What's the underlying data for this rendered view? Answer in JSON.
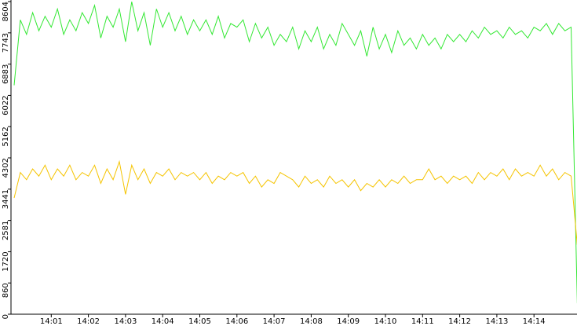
{
  "chart_data": {
    "type": "line",
    "categories": [
      null,
      null,
      null,
      null,
      null,
      null,
      "14:01",
      null,
      null,
      null,
      null,
      null,
      "14:02",
      null,
      null,
      null,
      null,
      null,
      "14:03",
      null,
      null,
      null,
      null,
      null,
      "14:04",
      null,
      null,
      null,
      null,
      null,
      "14:05",
      null,
      null,
      null,
      null,
      null,
      "14:06",
      null,
      null,
      null,
      null,
      null,
      "14:07",
      null,
      null,
      null,
      null,
      null,
      "14:08",
      null,
      null,
      null,
      null,
      null,
      "14:09",
      null,
      null,
      null,
      null,
      null,
      "14:10",
      null,
      null,
      null,
      null,
      null,
      "14:11",
      null,
      null,
      null,
      null,
      null,
      "14:12",
      null,
      null,
      null,
      null,
      null,
      "14:13",
      null,
      null,
      null,
      null,
      null,
      "14:14",
      null,
      null,
      null,
      null,
      null,
      null,
      null
    ],
    "series": [
      {
        "color": "#33e833",
        "values": [
          6300,
          8100,
          7700,
          8300,
          7800,
          8200,
          7900,
          8400,
          7700,
          8100,
          7800,
          8300,
          8000,
          8500,
          7600,
          8200,
          7900,
          8400,
          7500,
          8600,
          7800,
          8300,
          7400,
          8400,
          7900,
          8300,
          7800,
          8200,
          7700,
          8100,
          7800,
          8100,
          7700,
          8200,
          7600,
          8000,
          7900,
          8100,
          7500,
          8000,
          7600,
          7900,
          7400,
          7700,
          7500,
          7900,
          7300,
          7800,
          7500,
          7900,
          7300,
          7700,
          7400,
          8000,
          7700,
          7400,
          7800,
          7100,
          7900,
          7300,
          7700,
          7200,
          7800,
          7400,
          7600,
          7300,
          7700,
          7400,
          7600,
          7300,
          7700,
          7500,
          7700,
          7500,
          7800,
          7600,
          7900,
          7700,
          7800,
          7600,
          7900,
          7700,
          7800,
          7600,
          7900,
          7800,
          8000,
          7700,
          8000,
          7800,
          7900,
          300
        ]
      },
      {
        "color": "#f5c400",
        "values": [
          3200,
          3900,
          3700,
          4000,
          3800,
          4100,
          3700,
          4000,
          3800,
          4100,
          3700,
          3900,
          3800,
          4100,
          3600,
          4000,
          3700,
          4200,
          3300,
          4100,
          3700,
          4000,
          3600,
          3900,
          3800,
          4000,
          3700,
          3900,
          3800,
          3900,
          3700,
          3900,
          3600,
          3800,
          3700,
          3900,
          3800,
          3900,
          3600,
          3800,
          3500,
          3700,
          3600,
          3900,
          3800,
          3700,
          3500,
          3800,
          3600,
          3700,
          3500,
          3800,
          3600,
          3700,
          3500,
          3700,
          3400,
          3600,
          3500,
          3700,
          3500,
          3700,
          3600,
          3800,
          3600,
          3700,
          3700,
          4000,
          3700,
          3800,
          3600,
          3800,
          3700,
          3800,
          3600,
          3900,
          3700,
          3900,
          3800,
          4000,
          3700,
          4000,
          3800,
          3900,
          3800,
          4100,
          3800,
          4000,
          3700,
          3900,
          3800,
          1900
        ]
      }
    ],
    "ylim": [
      0,
      8604
    ],
    "yticks": [
      0,
      860,
      1720,
      2581,
      3441,
      4302,
      5162,
      6022,
      6883,
      7743,
      8604
    ]
  }
}
